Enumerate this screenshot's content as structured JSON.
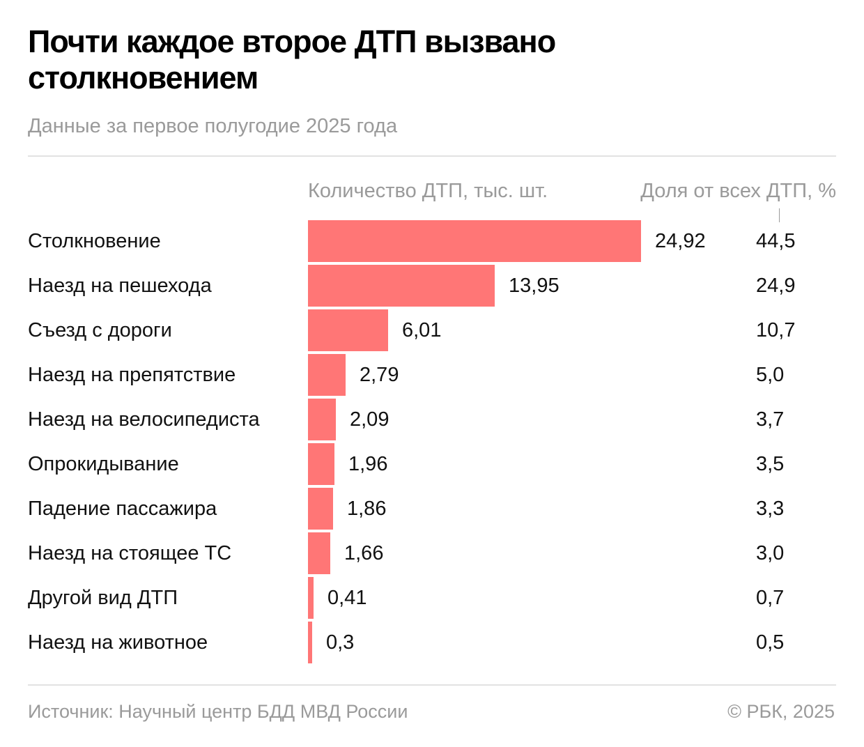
{
  "header": {
    "title": "Почти каждое второе ДТП вызвано столкновением",
    "subtitle": "Данные за первое полугодие 2025 года"
  },
  "footer": {
    "source": "Источник: Научный центр БДД МВД России",
    "copyright": "© РБК, 2025"
  },
  "colors": {
    "bar": "#ff7676",
    "muted_text": "#9a9a9a",
    "rule": "#e2e2e2"
  },
  "chart_data": {
    "type": "bar",
    "orientation": "horizontal",
    "title": "Почти каждое второе ДТП вызвано столкновением",
    "subtitle": "Данные за первое полугодие 2025 года",
    "xlabel": "Количество ДТП, тыс. шт.",
    "share_column_label": "Доля от всех ДТП, %",
    "xlim": [
      0,
      24.92
    ],
    "grid": false,
    "legend": "none",
    "categories": [
      "Столкновение",
      "Наезд на пешехода",
      "Съезд с дороги",
      "Наезд на препятствие",
      "Наезд на велосипедиста",
      "Опрокидывание",
      "Падение пассажира",
      "Наезд на стоящее ТС",
      "Другой вид ДТП",
      "Наезд на животное"
    ],
    "series": [
      {
        "name": "Количество ДТП, тыс. шт.",
        "values": [
          24.92,
          13.95,
          6.01,
          2.79,
          2.09,
          1.96,
          1.86,
          1.66,
          0.41,
          0.3
        ],
        "labels": [
          "24,92",
          "13,95",
          "6,01",
          "2,79",
          "2,09",
          "1,96",
          "1,86",
          "1,66",
          "0,41",
          "0,3"
        ]
      },
      {
        "name": "Доля от всех ДТП, %",
        "values": [
          44.5,
          24.9,
          10.7,
          5.0,
          3.7,
          3.5,
          3.3,
          3.0,
          0.7,
          0.5
        ],
        "labels": [
          "44,5",
          "24,9",
          "10,7",
          "5,0",
          "3,7",
          "3,5",
          "3,3",
          "3,0",
          "0,7",
          "0,5"
        ]
      }
    ]
  }
}
